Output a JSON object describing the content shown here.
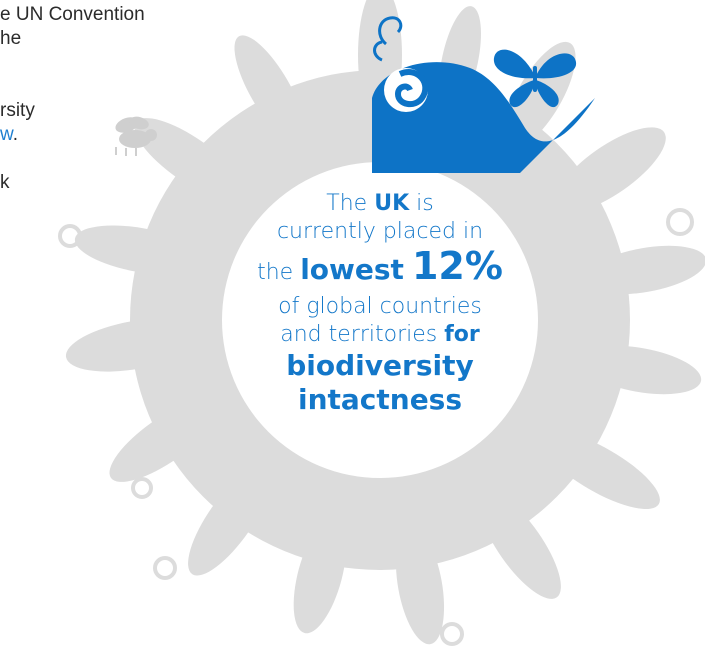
{
  "side_text": {
    "line1": "e UN Convention",
    "line2": "he",
    "line3": "rsity",
    "line4_link": "w",
    "line4_after": ".",
    "line5": "k"
  },
  "infographic": {
    "line1_pre": "The ",
    "line1_em": "UK",
    "line1_post": " is",
    "line2": "currently placed in",
    "line3_pre": "the ",
    "line3_em": "lowest",
    "line3_num": "12%",
    "line4": "of global countries",
    "line5_pre": "and territories ",
    "line5_em": "for",
    "line6": "biodiversity",
    "line7": "intactness"
  },
  "colors": {
    "accent_blue": "#1377c9",
    "illustration_grey": "#d9d9d9",
    "icon_blue": "#0d73c6"
  },
  "icons": [
    "butterfly-icon",
    "bee-icon",
    "leaf-wreath-icon",
    "blue-swirl-icon"
  ]
}
